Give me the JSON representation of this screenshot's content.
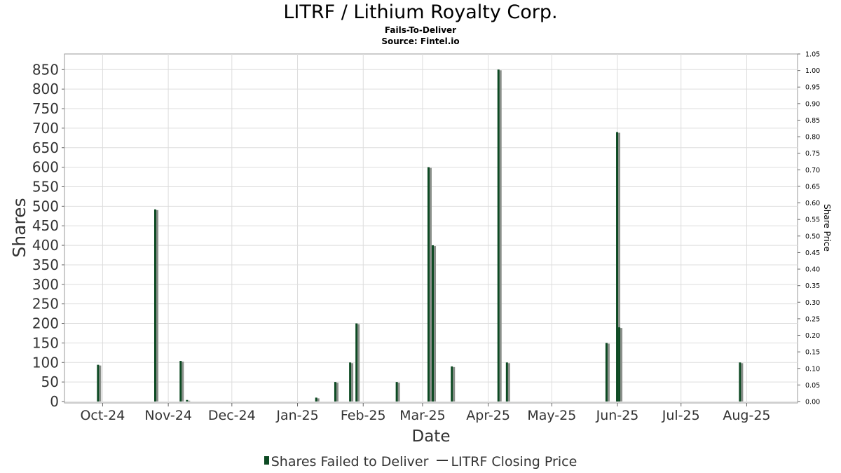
{
  "chart_data": {
    "type": "bar",
    "title": "LITRF / Lithium Royalty Corp.",
    "subtitle": "Fails-To-Deliver",
    "source": "Source: Fintel.io",
    "xlabel": "Date",
    "ylabel": "Shares",
    "y2label": "Share Price",
    "ylim": [
      0,
      890
    ],
    "yticks": [
      0,
      50,
      100,
      150,
      200,
      250,
      300,
      350,
      400,
      450,
      500,
      550,
      600,
      650,
      700,
      750,
      800,
      850
    ],
    "y2lim": [
      0,
      1.05
    ],
    "y2ticks": [
      "0.00",
      "0.05",
      "0.10",
      "0.15",
      "0.20",
      "0.25",
      "0.30",
      "0.35",
      "0.40",
      "0.45",
      "0.50",
      "0.55",
      "0.60",
      "0.65",
      "0.70",
      "0.75",
      "0.80",
      "0.85",
      "0.90",
      "0.95",
      "1.00",
      "1.05"
    ],
    "xlim": [
      "2024-09-13",
      "2025-08-25"
    ],
    "xticks": [
      {
        "date": "2024-10-01",
        "label": "Oct-24"
      },
      {
        "date": "2024-11-01",
        "label": "Nov-24"
      },
      {
        "date": "2024-12-01",
        "label": "Dec-24"
      },
      {
        "date": "2025-01-01",
        "label": "Jan-25"
      },
      {
        "date": "2025-02-01",
        "label": "Feb-25"
      },
      {
        "date": "2025-03-01",
        "label": "Mar-25"
      },
      {
        "date": "2025-04-01",
        "label": "Apr-25"
      },
      {
        "date": "2025-05-01",
        "label": "May-25"
      },
      {
        "date": "2025-06-01",
        "label": "Jun-25"
      },
      {
        "date": "2025-07-01",
        "label": "Jul-25"
      },
      {
        "date": "2025-08-01",
        "label": "Aug-25"
      }
    ],
    "grid": true,
    "legend_position": "bottom",
    "series": [
      {
        "name": "Shares Failed to Deliver",
        "color": "#0d4a23",
        "points": [
          {
            "date": "2024-09-29",
            "value": 94
          },
          {
            "date": "2024-10-26",
            "value": 492
          },
          {
            "date": "2024-11-07",
            "value": 104
          },
          {
            "date": "2024-11-10",
            "value": 4
          },
          {
            "date": "2025-01-10",
            "value": 10
          },
          {
            "date": "2025-01-19",
            "value": 50
          },
          {
            "date": "2025-01-26",
            "value": 100
          },
          {
            "date": "2025-01-29",
            "value": 200
          },
          {
            "date": "2025-02-17",
            "value": 50
          },
          {
            "date": "2025-03-04",
            "value": 600
          },
          {
            "date": "2025-03-06",
            "value": 400
          },
          {
            "date": "2025-03-15",
            "value": 90
          },
          {
            "date": "2025-04-06",
            "value": 850
          },
          {
            "date": "2025-04-10",
            "value": 100
          },
          {
            "date": "2025-05-27",
            "value": 150
          },
          {
            "date": "2025-06-01",
            "value": 690
          },
          {
            "date": "2025-06-02",
            "value": 190
          },
          {
            "date": "2025-07-29",
            "value": 100
          }
        ]
      },
      {
        "name": "LITRF Closing Price",
        "color": "#333333"
      }
    ]
  },
  "legend": {
    "bar_label": "Shares Failed to Deliver",
    "line_label": "LITRF Closing Price"
  }
}
